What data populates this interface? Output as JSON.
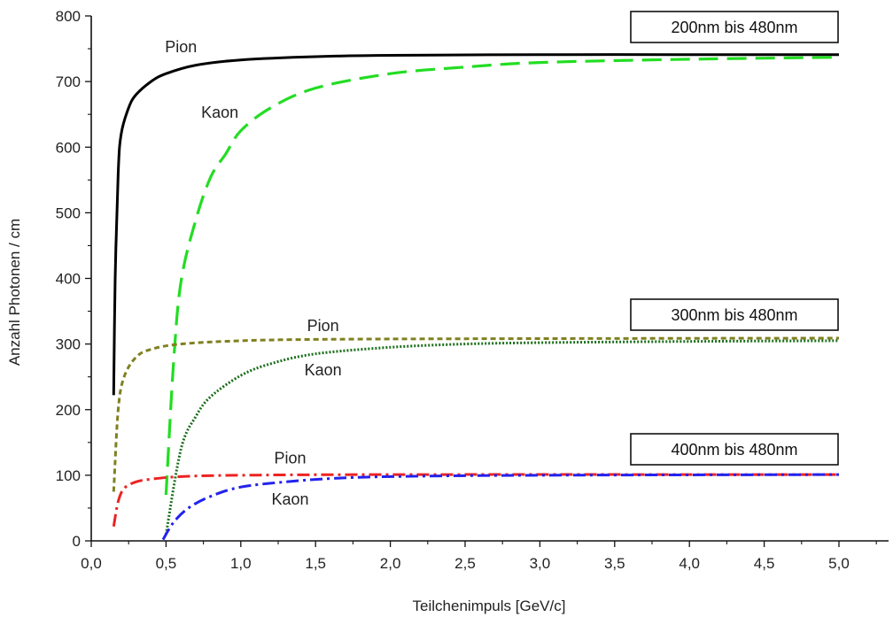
{
  "chart_data": {
    "type": "line",
    "xlabel": "Teilchenimpuls [GeV/c]",
    "ylabel": "Anzahl Photonen / cm",
    "xlim": [
      0.0,
      5.0
    ],
    "ylim": [
      0,
      800
    ],
    "x_ticks": [
      "0,0",
      "0,5",
      "1,0",
      "1,5",
      "2,0",
      "2,5",
      "3,0",
      "3,5",
      "4,0",
      "4,5",
      "5,0"
    ],
    "y_ticks": [
      "0",
      "100",
      "200",
      "300",
      "400",
      "500",
      "600",
      "700",
      "800"
    ],
    "grid": false,
    "groups": [
      {
        "range_label": "200nm bis 480nm",
        "series": [
          {
            "name": "Pion",
            "color": "#000000",
            "dash": "solid",
            "points": [
              [
                0.15,
                222
              ],
              [
                0.16,
                400
              ],
              [
                0.18,
                560
              ],
              [
                0.2,
                620
              ],
              [
                0.25,
                660
              ],
              [
                0.3,
                680
              ],
              [
                0.4,
                700
              ],
              [
                0.5,
                712
              ],
              [
                0.7,
                725
              ],
              [
                1.0,
                733
              ],
              [
                1.5,
                738
              ],
              [
                2.0,
                740
              ],
              [
                3.0,
                741
              ],
              [
                4.0,
                741
              ],
              [
                5.0,
                741
              ]
            ]
          },
          {
            "name": "Kaon",
            "color": "#22dd22",
            "dash": "long-dash",
            "points": [
              [
                0.5,
                70
              ],
              [
                0.55,
                270
              ],
              [
                0.6,
                395
              ],
              [
                0.7,
                490
              ],
              [
                0.8,
                555
              ],
              [
                0.9,
                590
              ],
              [
                1.0,
                625
              ],
              [
                1.2,
                660
              ],
              [
                1.5,
                690
              ],
              [
                2.0,
                712
              ],
              [
                2.5,
                722
              ],
              [
                3.0,
                729
              ],
              [
                4.0,
                734
              ],
              [
                5.0,
                737
              ]
            ]
          }
        ]
      },
      {
        "range_label": "300nm bis 480nm",
        "series": [
          {
            "name": "Pion",
            "color": "#808020",
            "dash": "short-dash",
            "points": [
              [
                0.15,
                75
              ],
              [
                0.18,
                200
              ],
              [
                0.22,
                250
              ],
              [
                0.3,
                280
              ],
              [
                0.4,
                292
              ],
              [
                0.6,
                300
              ],
              [
                1.0,
                305
              ],
              [
                1.5,
                307
              ],
              [
                2.5,
                308
              ],
              [
                5.0,
                309
              ]
            ]
          },
          {
            "name": "Kaon",
            "color": "#1a6e1a",
            "dash": "dotted",
            "points": [
              [
                0.5,
                10
              ],
              [
                0.6,
                140
              ],
              [
                0.7,
                190
              ],
              [
                0.8,
                220
              ],
              [
                1.0,
                252
              ],
              [
                1.2,
                270
              ],
              [
                1.5,
                285
              ],
              [
                2.0,
                295
              ],
              [
                2.5,
                300
              ],
              [
                3.0,
                302
              ],
              [
                4.0,
                304
              ],
              [
                5.0,
                305
              ]
            ]
          }
        ]
      },
      {
        "range_label": "400nm bis 480nm",
        "series": [
          {
            "name": "Pion",
            "color": "#ee2222",
            "dash": "dash-dot",
            "points": [
              [
                0.15,
                22
              ],
              [
                0.18,
                60
              ],
              [
                0.22,
                80
              ],
              [
                0.3,
                90
              ],
              [
                0.4,
                94
              ],
              [
                0.6,
                98
              ],
              [
                1.0,
                100
              ],
              [
                2.0,
                101
              ],
              [
                5.0,
                101
              ]
            ]
          },
          {
            "name": "Kaon",
            "color": "#2222ee",
            "dash": "dash-dot",
            "points": [
              [
                0.48,
                2
              ],
              [
                0.55,
                28
              ],
              [
                0.65,
                50
              ],
              [
                0.8,
                68
              ],
              [
                1.0,
                82
              ],
              [
                1.3,
                90
              ],
              [
                1.6,
                95
              ],
              [
                2.0,
                98
              ],
              [
                3.0,
                100
              ],
              [
                5.0,
                101
              ]
            ]
          }
        ]
      }
    ],
    "curve_labels": [
      {
        "text": "Pion",
        "x": 0.6,
        "y": 745
      },
      {
        "text": "Kaon",
        "x": 0.86,
        "y": 645
      },
      {
        "text": "Pion",
        "x": 1.55,
        "y": 320
      },
      {
        "text": "Kaon",
        "x": 1.55,
        "y": 252
      },
      {
        "text": "Pion",
        "x": 1.33,
        "y": 118
      },
      {
        "text": "Kaon",
        "x": 1.33,
        "y": 55
      }
    ]
  }
}
